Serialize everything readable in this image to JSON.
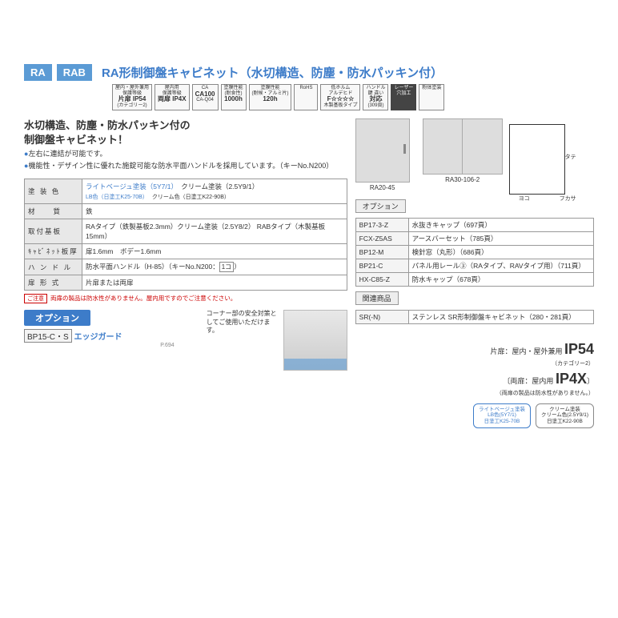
{
  "header": {
    "tags": [
      "RA",
      "RAB"
    ],
    "title": "RA形制御盤キャビネット（水切構造、防塵・防水パッキン付）"
  },
  "badges": [
    {
      "top": "屋内・屋外兼用",
      "mid": "保護等級",
      "big": "片扉 IP54",
      "sub": "(カテゴリー2)"
    },
    {
      "top": "屋内用",
      "mid": "保護等級",
      "big": "両扉 IP4X",
      "sub": ""
    },
    {
      "top": "",
      "mid": "CA",
      "big": "CA100",
      "sub": "CA-Q04"
    },
    {
      "top": "塗膜性能",
      "mid": "(耐食性)",
      "big": "1000h",
      "sub": ""
    },
    {
      "top": "塗膜性能",
      "mid": "(耐候・アルミ片)",
      "big": "120h",
      "sub": ""
    },
    {
      "top": "",
      "mid": "RoHS",
      "big": "",
      "sub": ""
    },
    {
      "top": "低ホルム",
      "mid": "アルデヒド",
      "big": "F☆☆☆☆",
      "sub": "木製基板タイプ"
    },
    {
      "top": "ハンドル",
      "mid": "鍵 違い",
      "big": "対応",
      "sub": "(309頁)"
    },
    {
      "top": "レーザー",
      "mid": "穴加工",
      "big": "",
      "sub": "",
      "dark": true
    },
    {
      "top": "",
      "mid": "粉体塗装",
      "big": "",
      "sub": ""
    }
  ],
  "desc": {
    "heading1": "水切構造、防塵・防水パッキン付の",
    "heading2": "制御盤キャビネット！",
    "items": [
      "左右に連結が可能です。",
      "機能性・デザイン性に優れた施錠可能な防水平面ハンドルを採用しています。（キーNo.N200）"
    ]
  },
  "images": {
    "cap1": "RA20-45",
    "cap2": "RA30-106-2",
    "dimY": "タテ",
    "dimX": "ヨコ",
    "dimD": "フカサ"
  },
  "spec": [
    {
      "label": "塗 装 色",
      "value_html": "<span class='blue-link'>ライトベージュ塗装（5Y7/1）</span>　クリーム塗装（2.5Y9/1）<br><span class='blue-link' style='font-size:7px'>LB色（日塗工K25-70B）</span>　<span style='font-size:7px'>クリーム色（日塗工K22-90B）</span>"
    },
    {
      "label": "材　　質",
      "value": "鉄"
    },
    {
      "label": "取付基板",
      "value": "RAタイプ（鉄製基板2.3mm）クリーム塗装（2.5Y8/2）\nRABタイプ（木製基板15mm）"
    },
    {
      "label": "ｷｬﾋﾞﾈｯﾄ板厚",
      "value": "扉1.6mm　ボデー1.6mm"
    },
    {
      "label": "ハ ン ド ル",
      "value_html": "防水平面ハンドル（H-85）（キーNo.N200：<span class='count-box'>1コ</span>）"
    },
    {
      "label": "扉 形 式",
      "value": "片扉または両扉"
    }
  ],
  "caution": {
    "tag": "ご注意",
    "text": "両扉の製品は防水性がありません。屋内用ですのでご注意ください。"
  },
  "optionLeft": {
    "title": "オプション",
    "code": "BP15-C・S",
    "name": "エッジガード",
    "page": "P.694",
    "desc": "コーナー部の安全対策としてご使用いただけます。"
  },
  "optionRight": {
    "title": "オプション",
    "rows": [
      {
        "code": "BP17-3-Z",
        "text": "水抜きキャップ（697頁）"
      },
      {
        "code": "FCX-Z5AS",
        "text": "アースバーセット（785頁）"
      },
      {
        "code": "BP12-M",
        "text": "検針窓（丸形）（686頁）"
      },
      {
        "code": "BP21-C",
        "text": "パネル用レール③（RAタイプ、RAVタイプ用）（711頁）"
      },
      {
        "code": "HX-C85-Z",
        "text": "防水キャップ（678頁）"
      }
    ],
    "relatedTitle": "関連商品",
    "related": {
      "code": "SR(-N)",
      "text": "ステンレス SR形制御盤キャビネット（280・281頁）"
    }
  },
  "ip": {
    "line1a": "片扉：屋内・屋外兼用",
    "line1b": "IP54",
    "line1sub": "（カテゴリー2）",
    "line2a": "両扉：屋内用",
    "line2b": "IP4X",
    "line2sub": "（両扉の製品は防水性がありません。）"
  },
  "swatches": [
    {
      "l1": "ライトベージュ塗装",
      "l2": "LB色(5Y7/1)",
      "l3": "日塗工K25-70B",
      "cls": "blue"
    },
    {
      "l1": "クリーム塗装",
      "l2": "クリーム色(2.5Y9/1)",
      "l3": "日塗工K22-90B",
      "cls": ""
    }
  ]
}
